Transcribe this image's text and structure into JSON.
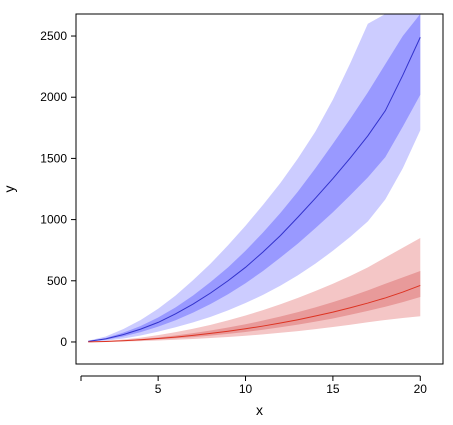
{
  "chart_data": {
    "type": "area",
    "title": "",
    "xlabel": "x",
    "ylabel": "y",
    "xlim": [
      0.3,
      21.3
    ],
    "ylim": [
      -180,
      2680
    ],
    "x_ticks": [
      5,
      10,
      15,
      20
    ],
    "x_tick_labels": [
      "5",
      "10",
      "15",
      "20"
    ],
    "y_ticks": [
      0,
      500,
      1000,
      1500,
      2000,
      2500
    ],
    "y_tick_labels": [
      "0",
      "500",
      "1000",
      "1500",
      "2000",
      "2500"
    ],
    "grid": false,
    "legend": "none",
    "x": [
      1,
      2,
      3,
      4,
      5,
      6,
      7,
      8,
      9,
      10,
      11,
      12,
      13,
      14,
      15,
      16,
      17,
      18,
      19,
      20
    ],
    "series": [
      {
        "color": "#3333cc",
        "band_outer_color": "#ccccff",
        "band_inner_color": "#9999ff",
        "median": [
          5,
          25,
          60,
          105,
          160,
          230,
          310,
          400,
          500,
          610,
          735,
          870,
          1020,
          1175,
          1335,
          1505,
          1685,
          1890,
          2180,
          2490
        ],
        "inner_lower": [
          4,
          18,
          45,
          80,
          125,
          178,
          240,
          310,
          390,
          480,
          580,
          690,
          805,
          930,
          1060,
          1200,
          1345,
          1510,
          1760,
          2020
        ],
        "inner_upper": [
          7,
          32,
          76,
          130,
          200,
          283,
          380,
          490,
          610,
          745,
          895,
          1055,
          1230,
          1420,
          1620,
          1825,
          2040,
          2270,
          2500,
          2680
        ],
        "outer_lower": [
          2,
          10,
          28,
          53,
          85,
          120,
          160,
          205,
          258,
          318,
          385,
          460,
          545,
          640,
          745,
          860,
          985,
          1165,
          1420,
          1730
        ],
        "outer_upper": [
          10,
          45,
          105,
          180,
          272,
          380,
          505,
          640,
          790,
          950,
          1120,
          1300,
          1500,
          1720,
          1980,
          2280,
          2600,
          2680,
          2680,
          2680
        ]
      },
      {
        "color": "#dd3322",
        "band_outer_color": "#f4c6c6",
        "band_inner_color": "#e89a9a",
        "median": [
          1,
          4,
          10,
          18,
          28,
          40,
          54,
          70,
          88,
          108,
          130,
          155,
          182,
          212,
          244,
          280,
          318,
          360,
          408,
          462
        ],
        "inner_lower": [
          1,
          3,
          7,
          13,
          21,
          30,
          40,
          52,
          66,
          82,
          100,
          120,
          142,
          166,
          192,
          222,
          254,
          288,
          326,
          368
        ],
        "inner_upper": [
          1,
          6,
          13,
          24,
          37,
          53,
          72,
          94,
          118,
          145,
          175,
          208,
          244,
          283,
          326,
          372,
          422,
          476,
          528,
          580
        ],
        "outer_lower": [
          0,
          2,
          4,
          7,
          12,
          18,
          24,
          32,
          41,
          51,
          62,
          75,
          89,
          105,
          122,
          141,
          161,
          180,
          196,
          210
        ],
        "outer_upper": [
          2,
          9,
          20,
          36,
          56,
          80,
          108,
          140,
          176,
          216,
          260,
          308,
          360,
          416,
          476,
          540,
          610,
          690,
          770,
          850
        ]
      }
    ]
  }
}
